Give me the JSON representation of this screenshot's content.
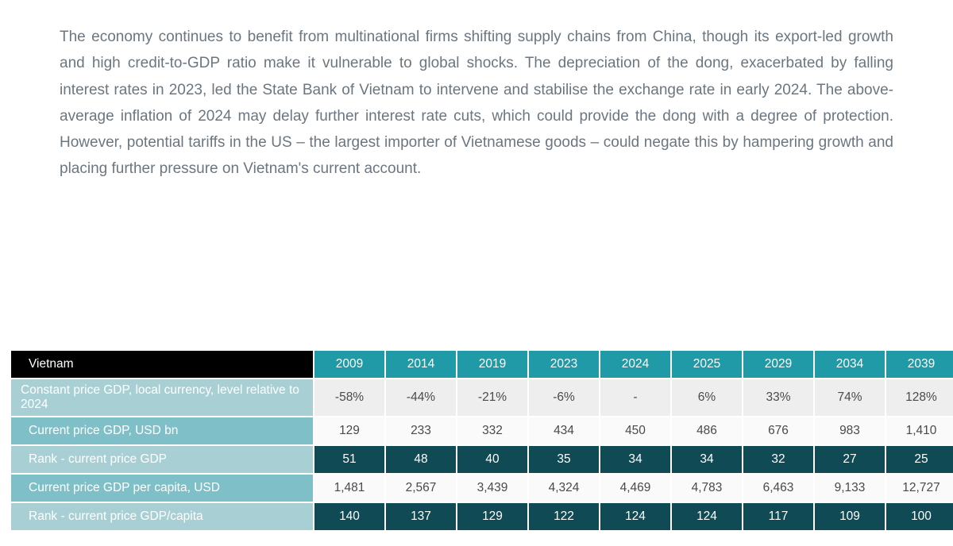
{
  "paragraph": "The economy continues to benefit from multinational firms shifting supply chains from China, though its export-led growth and high credit-to-GDP ratio make it vulnerable to global shocks. The depreciation of the dong, exacerbated by falling interest rates in 2023, led the State Bank of Vietnam to intervene and stabilise the exchange rate in early 2024. The above-average inflation of 2024 may delay further interest rate cuts, which could provide the dong with a degree of protection. However, potential tariffs in the US – the largest importer of Vietnamese goods – could negate this by hampering growth and placing further pressure on Vietnam's current account.",
  "table": {
    "corner": "Vietnam",
    "years": [
      "2009",
      "2014",
      "2019",
      "2023",
      "2024",
      "2025",
      "2029",
      "2034",
      "2039"
    ],
    "rows": [
      {
        "label": "Constant price GDP, local currency, level relative to 2024",
        "label_style": "label-light",
        "cell_style": "cell-light",
        "twoline": true,
        "cells": [
          "-58%",
          "-44%",
          "-21%",
          "-6%",
          "-",
          "6%",
          "33%",
          "74%",
          "128%"
        ]
      },
      {
        "label": "Current price GDP, USD bn",
        "label_style": "label-mid",
        "cell_style": "cell-white",
        "twoline": false,
        "cells": [
          "129",
          "233",
          "332",
          "434",
          "450",
          "486",
          "676",
          "983",
          "1,410"
        ]
      },
      {
        "label": "Rank - current price GDP",
        "label_style": "label-light",
        "cell_style": "cell-dark",
        "twoline": false,
        "cells": [
          "51",
          "48",
          "40",
          "35",
          "34",
          "34",
          "32",
          "27",
          "25"
        ]
      },
      {
        "label": "Current price GDP per capita, USD",
        "label_style": "label-mid",
        "cell_style": "cell-white",
        "twoline": false,
        "cells": [
          "1,481",
          "2,567",
          "3,439",
          "4,324",
          "4,469",
          "4,783",
          "6,463",
          "9,133",
          "12,727"
        ]
      },
      {
        "label": "Rank - current price GDP/capita",
        "label_style": "label-light",
        "cell_style": "cell-dark",
        "twoline": false,
        "cells": [
          "140",
          "137",
          "129",
          "122",
          "124",
          "124",
          "117",
          "109",
          "100"
        ]
      }
    ]
  },
  "colors": {
    "text_body": "#6b7680",
    "header_teal": "#1f9aa6",
    "row_label_light": "#a8cfd4",
    "row_label_mid": "#7fbfc7",
    "cell_light": "#eeeeee",
    "cell_white": "#fafafa",
    "cell_dark": "#0f4a55",
    "corner_bg": "#000000"
  }
}
